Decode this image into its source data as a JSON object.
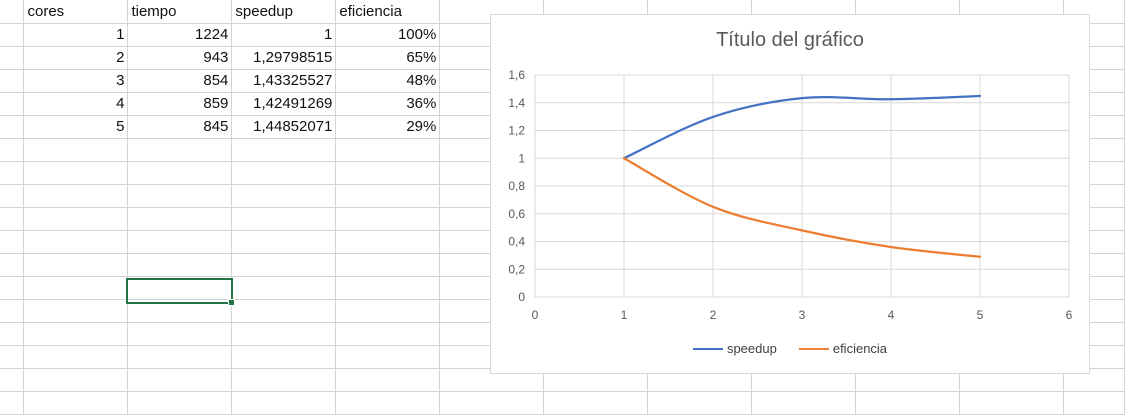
{
  "sheet": {
    "headers": [
      "cores",
      "tiempo",
      "speedup",
      "eficiencia"
    ],
    "rows": [
      [
        "1",
        "1224",
        "1",
        "100%"
      ],
      [
        "2",
        "943",
        "1,29798515",
        "65%"
      ],
      [
        "3",
        "854",
        "1,43325527",
        "48%"
      ],
      [
        "4",
        "859",
        "1,42491269",
        "36%"
      ],
      [
        "5",
        "845",
        "1,44852071",
        "29%"
      ]
    ]
  },
  "chart_data": {
    "type": "line",
    "title": "Título del gráfico",
    "x": [
      1,
      2,
      3,
      4,
      5
    ],
    "series": [
      {
        "name": "speedup",
        "values": [
          1,
          1.29798515,
          1.43325527,
          1.42491269,
          1.44852071
        ],
        "color": "#4472C4"
      },
      {
        "name": "eficiencia",
        "values": [
          1,
          0.65,
          0.48,
          0.36,
          0.29
        ],
        "color": "#ED7D31"
      }
    ],
    "xlim": [
      0,
      6
    ],
    "ylim": [
      0,
      1.6
    ],
    "x_ticks": [
      "0",
      "1",
      "2",
      "3",
      "4",
      "5",
      "6"
    ],
    "y_ticks": [
      "0",
      "0,2",
      "0,4",
      "0,6",
      "0,8",
      "1",
      "1,2",
      "1,4",
      "1,6"
    ],
    "gridlines": true,
    "legend": "bottom"
  }
}
